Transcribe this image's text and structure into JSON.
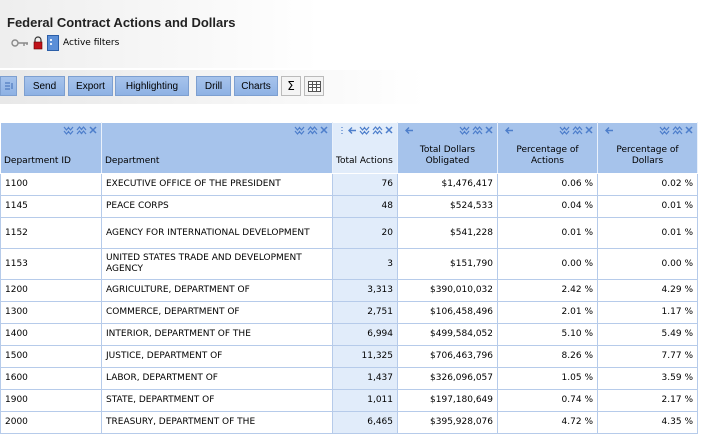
{
  "page": {
    "title": "Federal Contract Actions and Dollars",
    "filters_label": "Active filters"
  },
  "toolbar": {
    "send": "Send",
    "export": "Export",
    "highlighting": "Highlighting",
    "drill": "Drill",
    "charts": "Charts",
    "sum_symbol": "Σ"
  },
  "columns": [
    {
      "label": "Department ID"
    },
    {
      "label": "Department"
    },
    {
      "label": "Total Actions"
    },
    {
      "label": "Total Dollars Obligated"
    },
    {
      "label": "Percentage of Actions"
    },
    {
      "label": "Percentage of Dollars"
    }
  ],
  "rows": [
    {
      "id": "1100",
      "dept": "EXECUTIVE OFFICE OF THE PRESIDENT",
      "actions": "76",
      "dollars": "$1,476,417",
      "pct_actions": "0.06 %",
      "pct_dollars": "0.02 %"
    },
    {
      "id": "1145",
      "dept": "PEACE CORPS",
      "actions": "48",
      "dollars": "$524,533",
      "pct_actions": "0.04 %",
      "pct_dollars": "0.01 %"
    },
    {
      "id": "1152",
      "dept": "AGENCY FOR INTERNATIONAL DEVELOPMENT",
      "actions": "20",
      "dollars": "$541,228",
      "pct_actions": "0.01 %",
      "pct_dollars": "0.01 %"
    },
    {
      "id": "1153",
      "dept": "UNITED STATES TRADE AND DEVELOPMENT AGENCY",
      "actions": "3",
      "dollars": "$151,790",
      "pct_actions": "0.00 %",
      "pct_dollars": "0.00 %"
    },
    {
      "id": "1200",
      "dept": "AGRICULTURE, DEPARTMENT OF",
      "actions": "3,313",
      "dollars": "$390,010,032",
      "pct_actions": "2.42 %",
      "pct_dollars": "4.29 %"
    },
    {
      "id": "1300",
      "dept": "COMMERCE, DEPARTMENT OF",
      "actions": "2,751",
      "dollars": "$106,458,496",
      "pct_actions": "2.01 %",
      "pct_dollars": "1.17 %"
    },
    {
      "id": "1400",
      "dept": "INTERIOR, DEPARTMENT OF THE",
      "actions": "6,994",
      "dollars": "$499,584,052",
      "pct_actions": "5.10 %",
      "pct_dollars": "5.49 %"
    },
    {
      "id": "1500",
      "dept": "JUSTICE, DEPARTMENT OF",
      "actions": "11,325",
      "dollars": "$706,463,796",
      "pct_actions": "8.26 %",
      "pct_dollars": "7.77 %"
    },
    {
      "id": "1600",
      "dept": "LABOR, DEPARTMENT OF",
      "actions": "1,437",
      "dollars": "$326,096,057",
      "pct_actions": "1.05 %",
      "pct_dollars": "3.59 %"
    },
    {
      "id": "1900",
      "dept": "STATE, DEPARTMENT OF",
      "actions": "1,011",
      "dollars": "$197,180,649",
      "pct_actions": "0.74 %",
      "pct_dollars": "2.17 %"
    },
    {
      "id": "2000",
      "dept": "TREASURY, DEPARTMENT OF THE",
      "actions": "6,465",
      "dollars": "$395,928,076",
      "pct_actions": "4.72 %",
      "pct_dollars": "4.35 %"
    }
  ],
  "icons": {
    "key": "key-icon",
    "lock": "lock-icon",
    "filter_doc": "document-icon",
    "grid": "grid-table-icon",
    "collapse": "collapse-icon",
    "sort": "sort-chevrons-icon",
    "close": "close-icon",
    "move_left": "arrow-left-icon"
  },
  "colors": {
    "header_blue": "#a6c3eb",
    "selected_column": "#e1ecfa",
    "button_blue": "#97b9e7",
    "chevron_blue": "#4d7ecb"
  }
}
